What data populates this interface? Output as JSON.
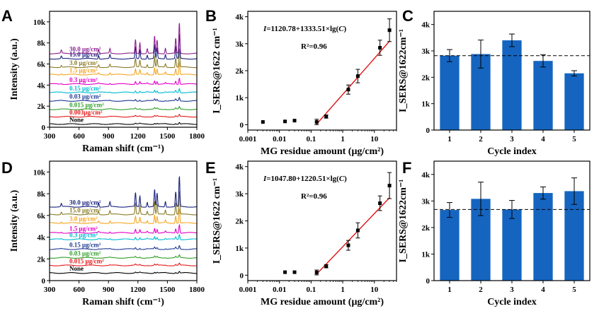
{
  "chart_data": [
    {
      "panel": "A",
      "type": "line",
      "xlabel": "Raman shift (cm⁻¹)",
      "ylabel": "Intensity (a.u.)",
      "xlim": [
        300,
        1800
      ],
      "ylim": [
        0,
        11000
      ],
      "xticks": [
        {
          "v": 300,
          "t": "300"
        },
        {
          "v": 600,
          "t": "600"
        },
        {
          "v": 900,
          "t": "900"
        },
        {
          "v": 1200,
          "t": "1200"
        },
        {
          "v": 1500,
          "t": "1500"
        },
        {
          "v": 1800,
          "t": "1800"
        }
      ],
      "yticks": [
        {
          "v": 0,
          "t": "0"
        },
        {
          "v": 2000,
          "t": "2k"
        },
        {
          "v": 4000,
          "t": "4k"
        },
        {
          "v": 6000,
          "t": "6k"
        },
        {
          "v": 8000,
          "t": "8k"
        },
        {
          "v": 10000,
          "t": "10k"
        }
      ],
      "series": [
        {
          "name": "None",
          "base": 300,
          "amp": 0.04,
          "color": "#000000"
        },
        {
          "name": "0.003μg/cm²",
          "base": 1000,
          "amp": 0.05,
          "color": "#e41a1c"
        },
        {
          "name": "0.015 μg/cm²",
          "base": 1700,
          "amp": 0.06,
          "color": "#33a02c"
        },
        {
          "name": "0.03 μg/cm²",
          "base": 2500,
          "amp": 0.08,
          "color": "#1f3a93"
        },
        {
          "name": "0.15 μg/cm²",
          "base": 3300,
          "amp": 0.1,
          "color": "#00bcd4"
        },
        {
          "name": "0.3 μg/cm²",
          "base": 4100,
          "amp": 0.15,
          "color": "#e600c8"
        },
        {
          "name": "1.5 μg/cm²",
          "base": 5000,
          "amp": 0.3,
          "color": "#f5a623"
        },
        {
          "name": "3.0 μg/cm²",
          "base": 5700,
          "amp": 0.45,
          "color": "#8b7d2a"
        },
        {
          "name": "15.0 μg/cm²",
          "base": 6500,
          "amp": 0.6,
          "color": "#1a237e"
        },
        {
          "name": "30.0 μg/cm²",
          "base": 7000,
          "amp": 0.75,
          "color": "#8e1f8e"
        }
      ],
      "peaks": [
        {
          "x": 420,
          "h": 400
        },
        {
          "x": 800,
          "h": 500
        },
        {
          "x": 915,
          "h": 600
        },
        {
          "x": 1175,
          "h": 1800
        },
        {
          "x": 1220,
          "h": 1400
        },
        {
          "x": 1295,
          "h": 600
        },
        {
          "x": 1370,
          "h": 2200
        },
        {
          "x": 1395,
          "h": 1700
        },
        {
          "x": 1480,
          "h": 700
        },
        {
          "x": 1585,
          "h": 1900
        },
        {
          "x": 1622,
          "h": 3900
        }
      ]
    },
    {
      "panel": "B",
      "type": "scatter",
      "xlabel": "MG residue amount (μg/cm²)",
      "ylabel": "I_SERS@1622 cm⁻¹",
      "xscale": "log",
      "xlim": [
        0.001,
        50
      ],
      "ylim": [
        -200,
        4200
      ],
      "xticks": [
        {
          "v": 0.001,
          "t": "0.001"
        },
        {
          "v": 0.01,
          "t": "0.01"
        },
        {
          "v": 0.1,
          "t": "0.1"
        },
        {
          "v": 1,
          "t": "1"
        },
        {
          "v": 10,
          "t": "10"
        }
      ],
      "yticks": [
        {
          "v": 0,
          "t": "0"
        },
        {
          "v": 1000,
          "t": "1k"
        },
        {
          "v": 2000,
          "t": "2k"
        },
        {
          "v": 3000,
          "t": "3k"
        },
        {
          "v": 4000,
          "t": "4k"
        }
      ],
      "points": [
        {
          "x": 0.003,
          "y": 100,
          "err": 0
        },
        {
          "x": 0.015,
          "y": 120,
          "err": 0
        },
        {
          "x": 0.03,
          "y": 150,
          "err": 0
        },
        {
          "x": 0.15,
          "y": 100,
          "err": 100
        },
        {
          "x": 0.3,
          "y": 300,
          "err": 60
        },
        {
          "x": 1.5,
          "y": 1300,
          "err": 170
        },
        {
          "x": 3.0,
          "y": 1800,
          "err": 250
        },
        {
          "x": 15.0,
          "y": 2850,
          "err": 280
        },
        {
          "x": 30.0,
          "y": 3500,
          "err": 420
        }
      ],
      "fit": {
        "a": 1120.78,
        "b": 1333.51,
        "xmin": 0.15,
        "xmax": 30
      },
      "equation_prefix": "I",
      "equation": "=1120.78+1333.51×lg(",
      "equation_var": "C",
      "equation_close": ")",
      "r2": "R²=0.96"
    },
    {
      "panel": "C",
      "type": "bar",
      "xlabel": "Cycle index",
      "ylabel": "I_SERS@1622cm⁻¹",
      "categories": [
        "1",
        "2",
        "3",
        "4",
        "5"
      ],
      "values": [
        2820,
        2880,
        3400,
        2620,
        2150
      ],
      "errors": [
        230,
        530,
        240,
        230,
        100
      ],
      "ylim": [
        0,
        4500
      ],
      "reference_line": 2820,
      "bar_color": "#1565c0",
      "yticks": [
        {
          "v": 0,
          "t": "0"
        },
        {
          "v": 1000,
          "t": "1k"
        },
        {
          "v": 2000,
          "t": "2k"
        },
        {
          "v": 3000,
          "t": "3k"
        },
        {
          "v": 4000,
          "t": "4k"
        }
      ]
    },
    {
      "panel": "D",
      "type": "line",
      "xlabel": "Raman shift (cm⁻¹)",
      "ylabel": "Intensity (a.u.)",
      "xlim": [
        300,
        1800
      ],
      "ylim": [
        0,
        11000
      ],
      "xticks": [
        {
          "v": 300,
          "t": "300"
        },
        {
          "v": 600,
          "t": "600"
        },
        {
          "v": 900,
          "t": "900"
        },
        {
          "v": 1200,
          "t": "1200"
        },
        {
          "v": 1500,
          "t": "1500"
        },
        {
          "v": 1800,
          "t": "1800"
        }
      ],
      "yticks": [
        {
          "v": 0,
          "t": "0"
        },
        {
          "v": 2000,
          "t": "2k"
        },
        {
          "v": 4000,
          "t": "4k"
        },
        {
          "v": 6000,
          "t": "6k"
        },
        {
          "v": 8000,
          "t": "8k"
        },
        {
          "v": 10000,
          "t": "10k"
        }
      ],
      "series": [
        {
          "name": "None",
          "base": 700,
          "amp": 0.04,
          "color": "#000000"
        },
        {
          "name": "0.015 μg/cm²",
          "base": 1400,
          "amp": 0.05,
          "color": "#e41a1c"
        },
        {
          "name": "0.03 μg/cm²",
          "base": 2100,
          "amp": 0.06,
          "color": "#33a02c"
        },
        {
          "name": "0.15 μg/cm²",
          "base": 2900,
          "amp": 0.08,
          "color": "#1f3a93"
        },
        {
          "name": "0.3 μg/cm²",
          "base": 3800,
          "amp": 0.12,
          "color": "#00bcd4"
        },
        {
          "name": "1.5 μg/cm²",
          "base": 4400,
          "amp": 0.2,
          "color": "#e600c8"
        },
        {
          "name": "3.0 μg/cm²",
          "base": 5300,
          "amp": 0.35,
          "color": "#f5a623"
        },
        {
          "name": "15.0 μg/cm²",
          "base": 6100,
          "amp": 0.55,
          "color": "#8b7d2a"
        },
        {
          "name": "30.0 μg/cm²",
          "base": 6800,
          "amp": 0.72,
          "color": "#1a237e"
        }
      ],
      "peaks": [
        {
          "x": 420,
          "h": 400
        },
        {
          "x": 800,
          "h": 500
        },
        {
          "x": 915,
          "h": 600
        },
        {
          "x": 1175,
          "h": 1800
        },
        {
          "x": 1220,
          "h": 1400
        },
        {
          "x": 1295,
          "h": 600
        },
        {
          "x": 1370,
          "h": 2200
        },
        {
          "x": 1395,
          "h": 1700
        },
        {
          "x": 1480,
          "h": 700
        },
        {
          "x": 1585,
          "h": 1900
        },
        {
          "x": 1622,
          "h": 3900
        }
      ]
    },
    {
      "panel": "E",
      "type": "scatter",
      "xlabel": "MG residue amount (μg/cm²)",
      "ylabel": "I_SERS@1622 cm⁻¹",
      "xscale": "log",
      "xlim": [
        0.001,
        50
      ],
      "ylim": [
        -200,
        4200
      ],
      "xticks": [
        {
          "v": 0.001,
          "t": "0.001"
        },
        {
          "v": 0.01,
          "t": "0.01"
        },
        {
          "v": 0.1,
          "t": "0.1"
        },
        {
          "v": 1,
          "t": "1"
        },
        {
          "v": 10,
          "t": "10"
        }
      ],
      "yticks": [
        {
          "v": 0,
          "t": "0"
        },
        {
          "v": 1000,
          "t": "1k"
        },
        {
          "v": 2000,
          "t": "2k"
        },
        {
          "v": 3000,
          "t": "3k"
        },
        {
          "v": 4000,
          "t": "4k"
        }
      ],
      "points": [
        {
          "x": 0.015,
          "y": 110,
          "err": 0
        },
        {
          "x": 0.03,
          "y": 110,
          "err": 0
        },
        {
          "x": 0.15,
          "y": 100,
          "err": 90
        },
        {
          "x": 0.3,
          "y": 330,
          "err": 60
        },
        {
          "x": 1.5,
          "y": 1100,
          "err": 180
        },
        {
          "x": 3.0,
          "y": 1650,
          "err": 280
        },
        {
          "x": 15.0,
          "y": 2650,
          "err": 270
        },
        {
          "x": 30.0,
          "y": 3300,
          "err": 480
        }
      ],
      "fit": {
        "a": 1047.8,
        "b": 1220.51,
        "xmin": 0.15,
        "xmax": 30
      },
      "equation_prefix": "I",
      "equation": "=1047.80+1220.51×lg(",
      "equation_var": "C",
      "equation_close": ")",
      "r2": "R²=0.96"
    },
    {
      "panel": "F",
      "type": "bar",
      "xlabel": "Cycle index",
      "ylabel": "I_SERS@1622cm⁻¹",
      "categories": [
        "1",
        "2",
        "3",
        "4",
        "5"
      ],
      "values": [
        2660,
        3080,
        2680,
        3300,
        3370
      ],
      "errors": [
        280,
        630,
        340,
        230,
        500
      ],
      "ylim": [
        0,
        4500
      ],
      "reference_line": 2680,
      "bar_color": "#1565c0",
      "yticks": [
        {
          "v": 0,
          "t": "0"
        },
        {
          "v": 1000,
          "t": "1k"
        },
        {
          "v": 2000,
          "t": "2k"
        },
        {
          "v": 3000,
          "t": "3k"
        },
        {
          "v": 4000,
          "t": "4k"
        }
      ]
    }
  ]
}
